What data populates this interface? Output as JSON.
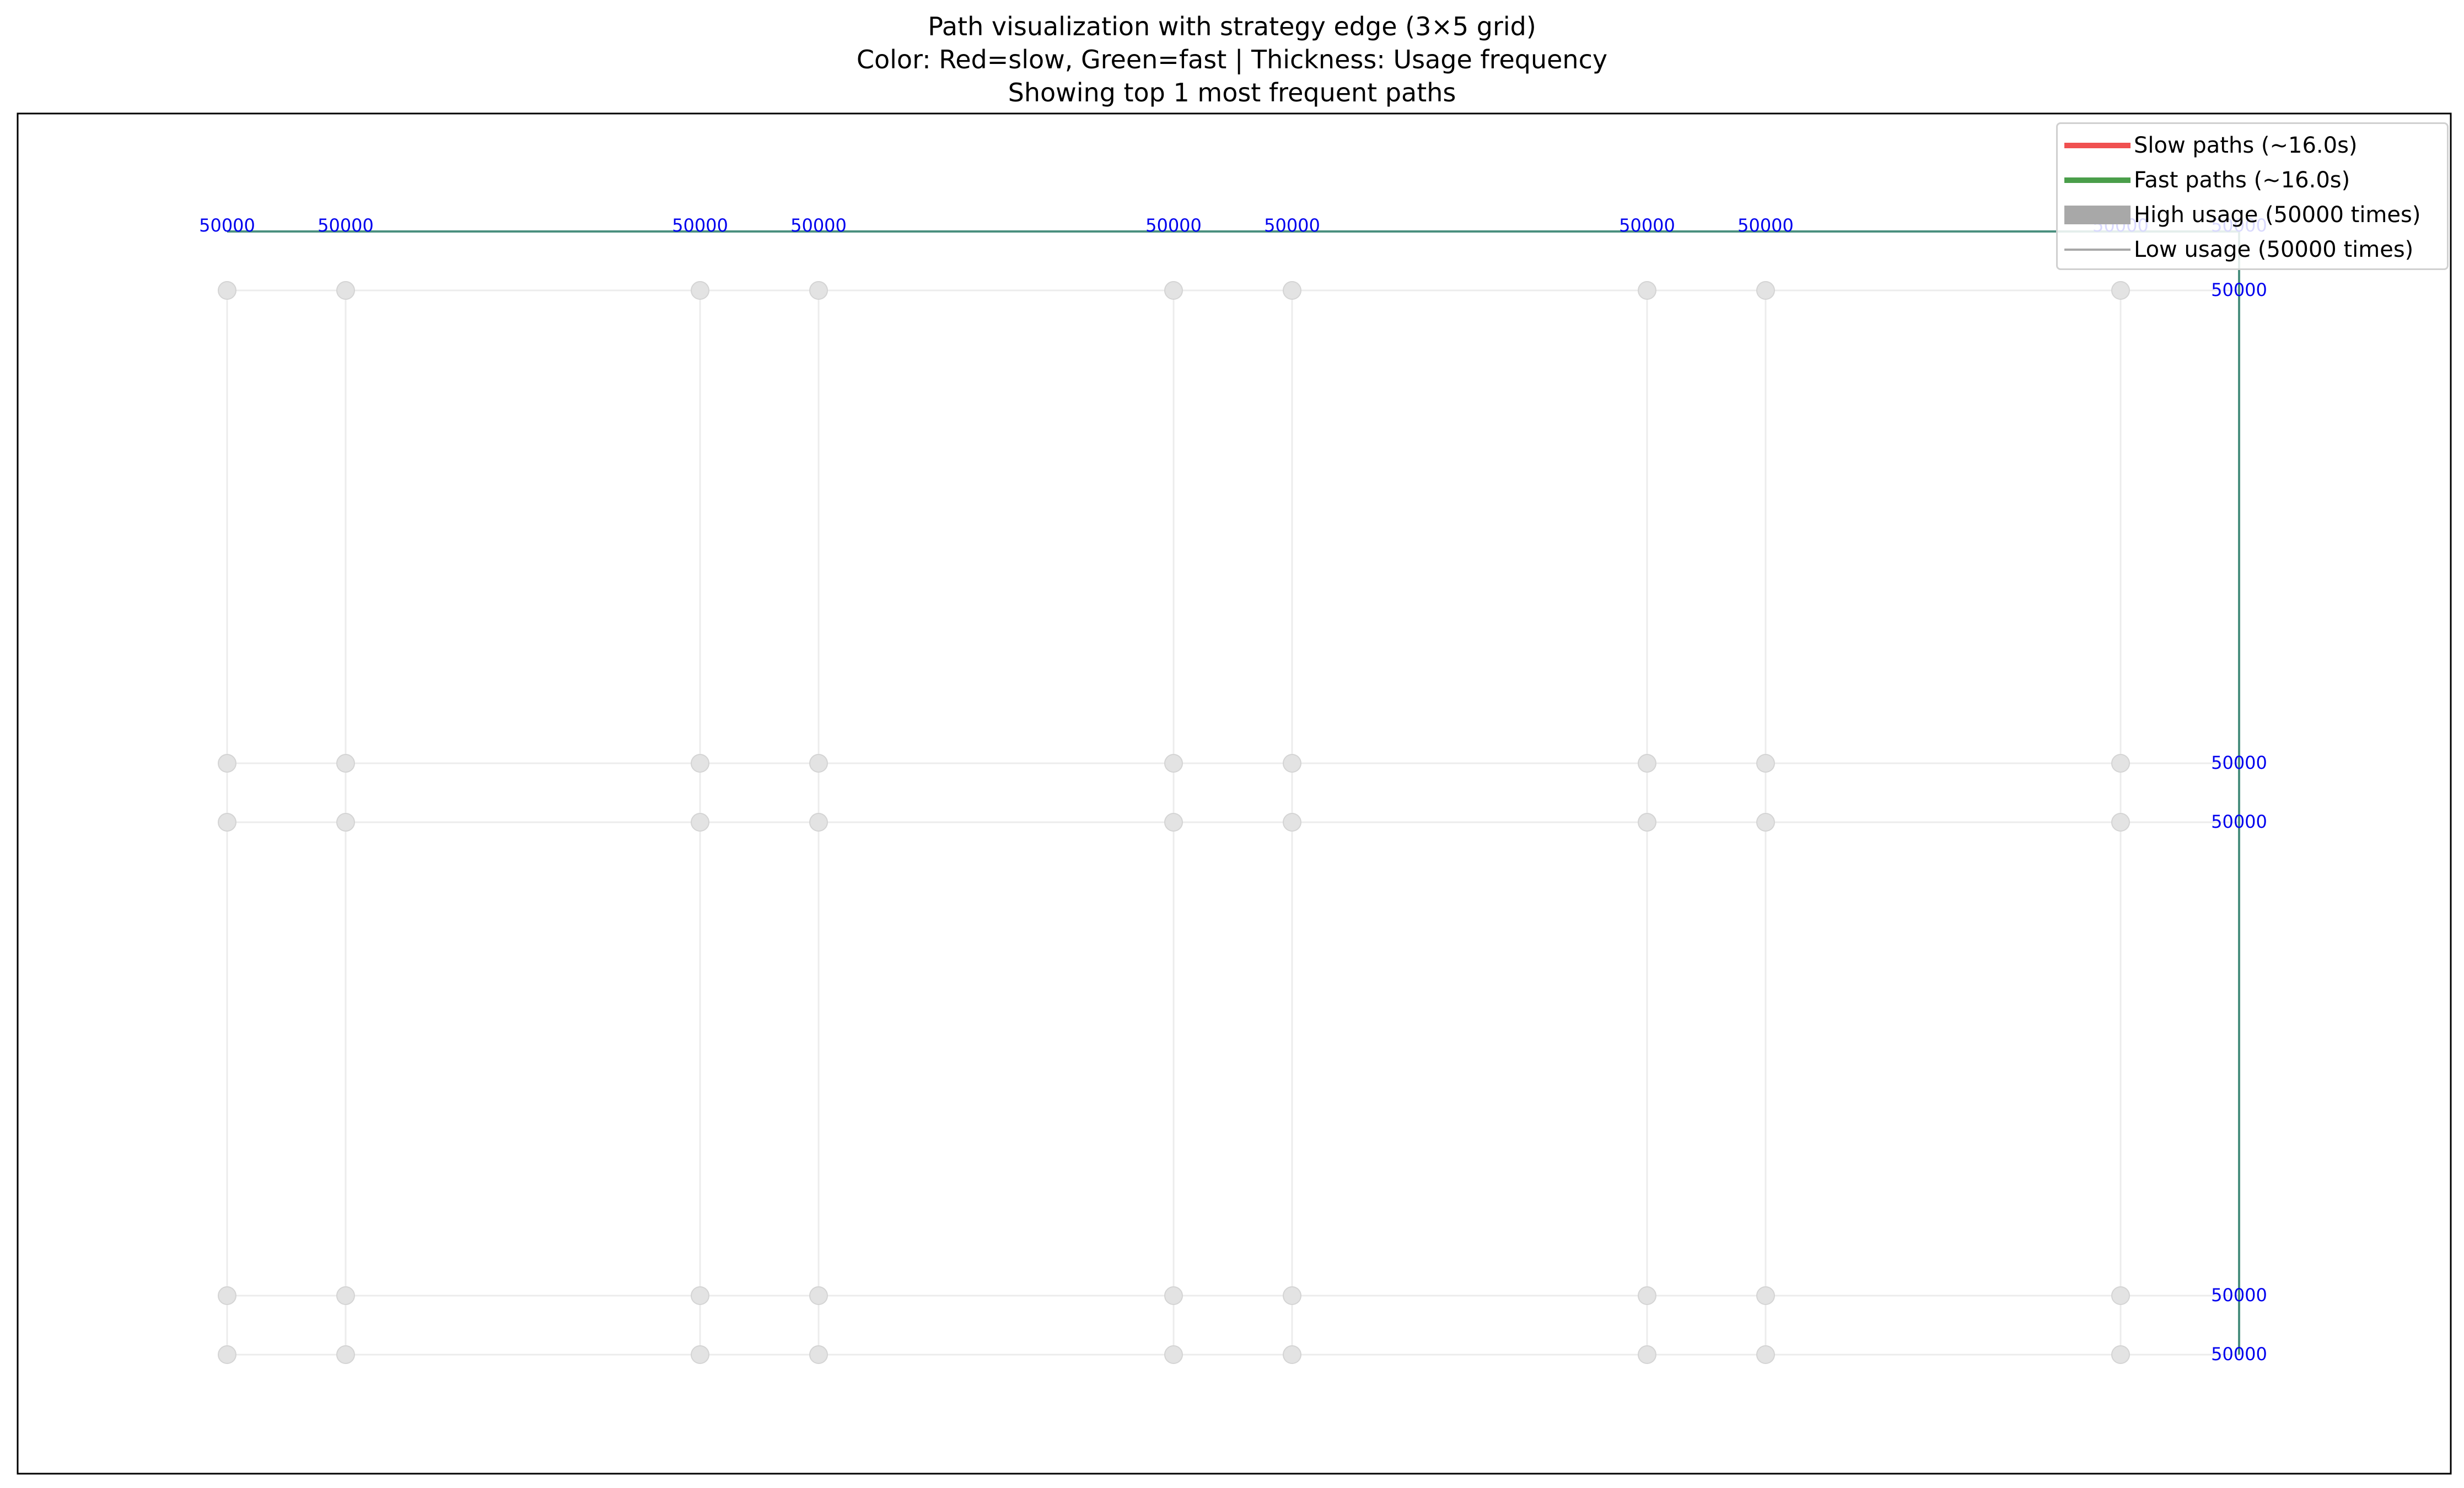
{
  "title": {
    "line1": "Path visualization with strategy edge (3×5 grid)",
    "line2": "Color: Red=slow, Green=fast | Thickness: Usage frequency",
    "line3": "Showing top 1 most frequent paths"
  },
  "legend": {
    "entries": [
      {
        "label": "Slow paths (~16.0s)",
        "color": "#f05050",
        "style": "slow"
      },
      {
        "label": "Fast paths (~16.0s)",
        "color": "#4a9e4a",
        "style": "fast"
      },
      {
        "label": "High usage (50000 times)",
        "color": "#a8a8a8",
        "style": "high"
      },
      {
        "label": "Low usage (50000 times)",
        "color": "#a8a8a8",
        "style": "low"
      }
    ]
  },
  "chart_data": {
    "type": "network",
    "grid": "3×5",
    "node_columns": 9,
    "node_rows": 5,
    "path": {
      "count": 50000,
      "color": "#4a8f7f",
      "route": "along top row to rightmost column, then down to bottom"
    },
    "edge_labels": {
      "top": [
        "50000",
        "50000",
        "50000",
        "50000",
        "50000",
        "50000",
        "50000",
        "50000",
        "50000",
        "50000"
      ],
      "right": [
        "50000",
        "50000",
        "50000",
        "50000",
        "50000"
      ]
    },
    "label_color": "#0000ee",
    "node_color": "#e3e3e3",
    "grid_line_color": "#ececec"
  }
}
